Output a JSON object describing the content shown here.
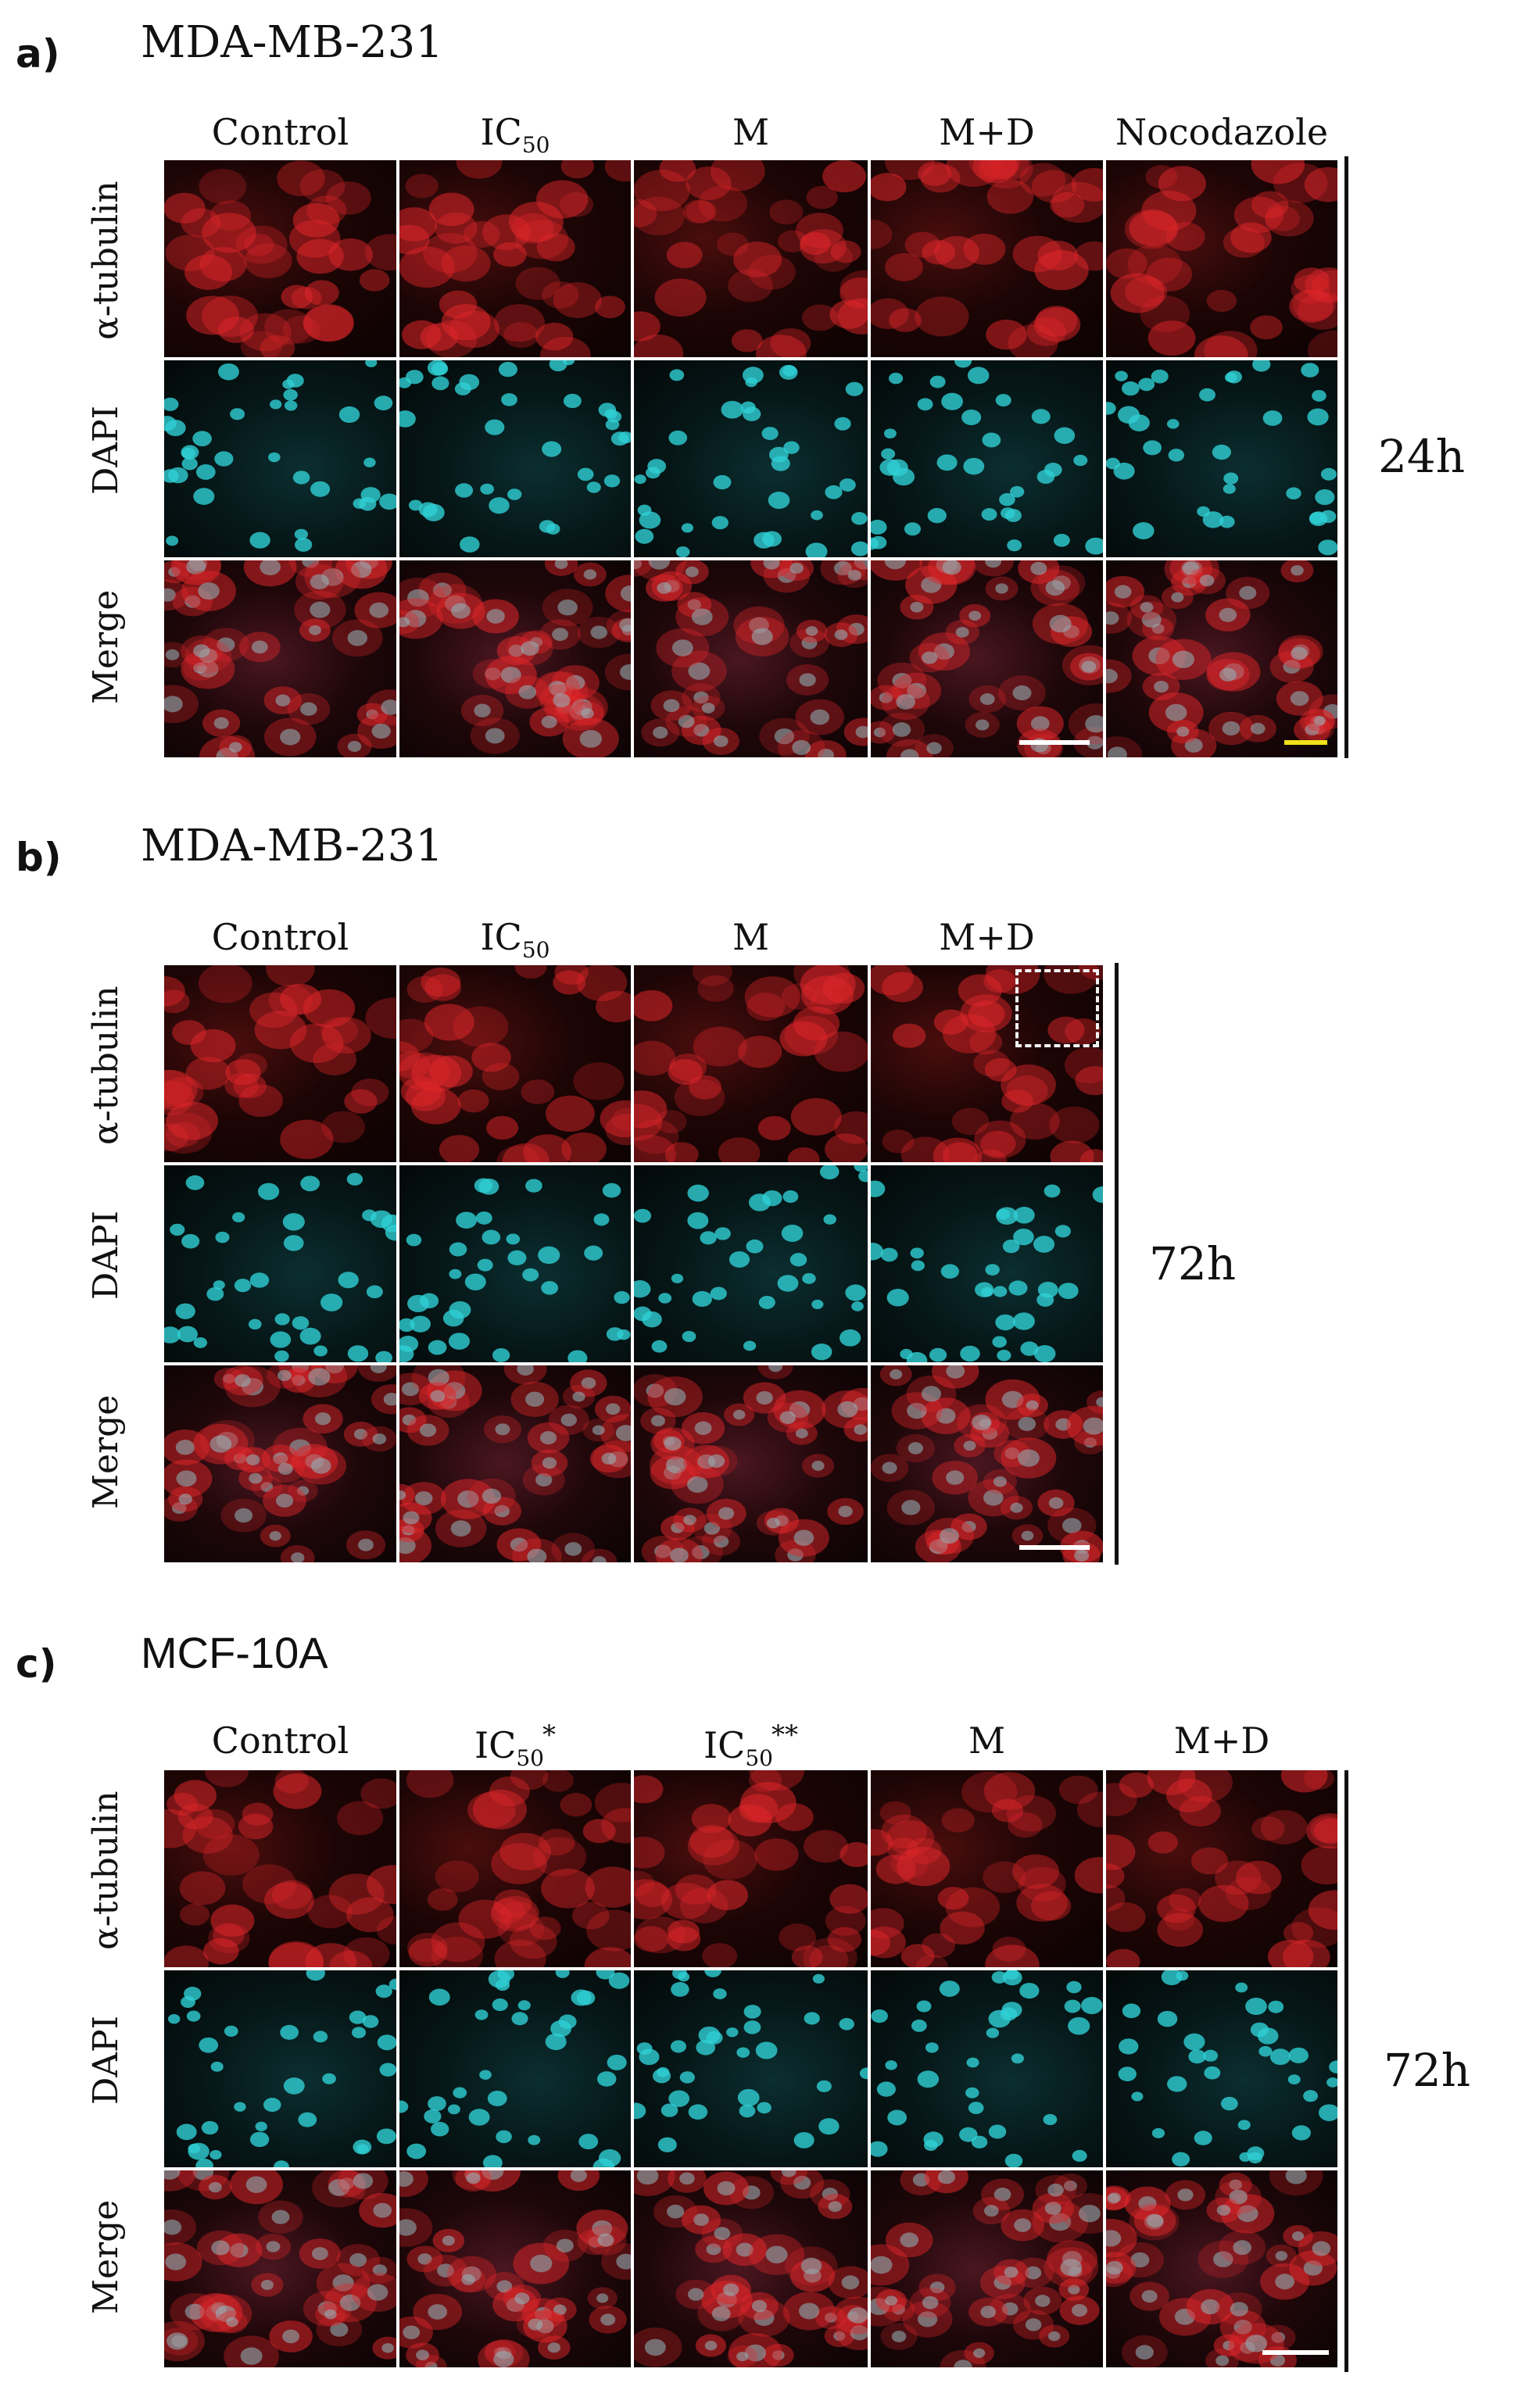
{
  "panels": [
    {
      "letter": "a)",
      "cell_line": "MDA-MB-231",
      "columns": [
        {
          "main": "Control"
        },
        {
          "main": "IC",
          "sub": "50"
        },
        {
          "main": "M"
        },
        {
          "main": "M+D"
        },
        {
          "main": "Nocodazole"
        }
      ],
      "rows": [
        "α-tubulin",
        "DAPI",
        "Merge"
      ],
      "time": "24h"
    },
    {
      "letter": "b)",
      "cell_line": "MDA-MB-231",
      "columns": [
        {
          "main": "Control"
        },
        {
          "main": "IC",
          "sub": "50"
        },
        {
          "main": "M"
        },
        {
          "main": "M+D"
        }
      ],
      "rows": [
        "α-tubulin",
        "DAPI",
        "Merge"
      ],
      "time": "72h"
    },
    {
      "letter": "c)",
      "cell_line": "MCF-10A",
      "columns": [
        {
          "main": "Control"
        },
        {
          "main": "IC",
          "sub": "50",
          "sup": "*"
        },
        {
          "main": "IC",
          "sub": "50",
          "sup": "**"
        },
        {
          "main": "M"
        },
        {
          "main": "M+D"
        }
      ],
      "rows": [
        "α-tubulin",
        "DAPI",
        "Merge"
      ],
      "time": "72h"
    }
  ],
  "colors": {
    "tubulin": "#e0262a",
    "dapi": "#2fd0d4",
    "scalebar_white": "#ffffff",
    "scalebar_yellow": "#f2e01a"
  }
}
